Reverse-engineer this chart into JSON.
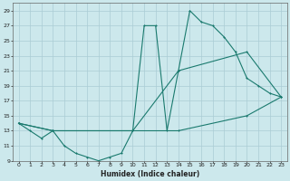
{
  "xlabel": "Humidex (Indice chaleur)",
  "bg_color": "#cce8ec",
  "grid_color": "#aaccd4",
  "line_color": "#1a7a6e",
  "xlim": [
    -0.5,
    23.5
  ],
  "ylim": [
    9,
    30
  ],
  "xticks": [
    0,
    1,
    2,
    3,
    4,
    5,
    6,
    7,
    8,
    9,
    10,
    11,
    12,
    13,
    14,
    15,
    16,
    17,
    18,
    19,
    20,
    21,
    22,
    23
  ],
  "yticks": [
    9,
    11,
    13,
    15,
    17,
    19,
    21,
    23,
    25,
    27,
    29
  ],
  "line1_x": [
    0,
    1,
    2,
    3,
    4,
    5,
    6,
    7,
    8,
    9,
    10,
    11,
    12,
    13,
    14,
    15,
    16,
    17,
    18,
    19,
    20,
    21,
    22,
    23
  ],
  "line1_y": [
    14,
    13,
    12,
    13,
    11,
    10,
    9.5,
    9,
    9.5,
    10,
    13,
    27,
    27,
    13,
    21,
    29,
    27.5,
    27,
    25.5,
    23.5,
    20,
    19,
    18,
    17.5
  ],
  "line2_x": [
    0,
    3,
    10,
    14,
    20,
    23
  ],
  "line2_y": [
    14,
    13,
    13,
    21,
    23.5,
    17.5
  ],
  "line3_x": [
    0,
    3,
    10,
    14,
    20,
    23
  ],
  "line3_y": [
    14,
    13,
    13,
    13,
    15,
    17.5
  ],
  "figwidth": 3.2,
  "figheight": 2.0,
  "dpi": 100
}
